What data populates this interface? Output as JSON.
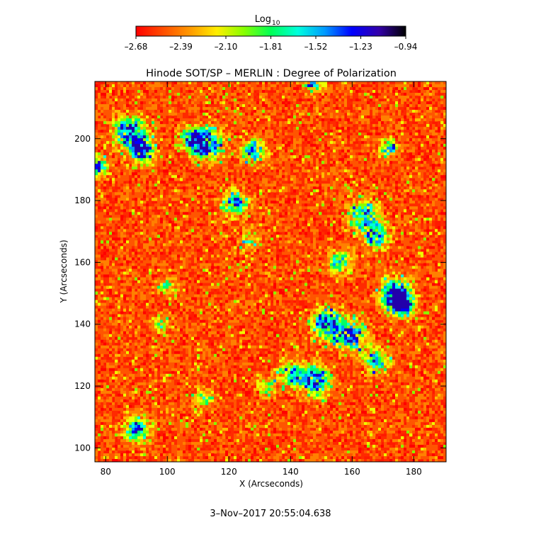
{
  "chart_data": {
    "type": "heatmap",
    "title": "Hinode SOT/SP – MERLIN : Degree of Polarization",
    "xlabel": "X (Arcseconds)",
    "ylabel": "Y (Arcseconds)",
    "xlim": [
      76.5,
      190.5
    ],
    "ylim": [
      95.5,
      218.5
    ],
    "x_ticks": [
      80,
      100,
      120,
      140,
      160,
      180
    ],
    "y_ticks": [
      100,
      120,
      140,
      160,
      180,
      200
    ],
    "colorbar": {
      "label_base": "Log",
      "label_sub": "10",
      "ticks": [
        "–2.68",
        "–2.39",
        "–2.10",
        "–1.81",
        "–1.52",
        "–1.23",
        "–0.94"
      ],
      "range": [
        -2.68,
        -0.94
      ],
      "colormap": [
        "#ff0000",
        "#ff4d00",
        "#ff9900",
        "#ffee00",
        "#88ff00",
        "#00ff55",
        "#00ffdd",
        "#0099ff",
        "#0000ff",
        "#3300aa",
        "#000000"
      ]
    },
    "grid": false,
    "timestamp": "3–Nov–2017 20:55:04.638"
  }
}
